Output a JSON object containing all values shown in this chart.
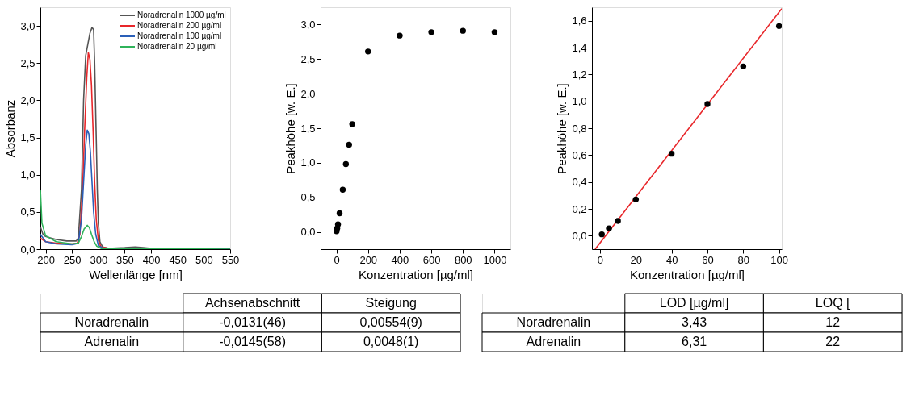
{
  "chart_data": [
    {
      "type": "line",
      "xlabel": "Wellenlänge [nm]",
      "ylabel": "Absorbanz",
      "legend": "top right",
      "line_style": "solid",
      "xlim": [
        190,
        550
      ],
      "xticks": [
        200,
        250,
        300,
        350,
        400,
        450,
        500,
        550
      ],
      "ylim": [
        0,
        3.25
      ],
      "yticks": [
        {
          "value": 0,
          "label": "0,0"
        },
        {
          "value": 0.5,
          "label": "0,5"
        },
        {
          "value": 1,
          "label": "1,0"
        },
        {
          "value": 1.5,
          "label": "1,5"
        },
        {
          "value": 2,
          "label": "2,0"
        },
        {
          "value": 2.5,
          "label": "2,5"
        },
        {
          "value": 3,
          "label": "3,0"
        }
      ],
      "series": [
        {
          "name": "Noradrenalin 1000 µg/ml",
          "color": "#555555",
          "x": [
            190,
            195,
            200,
            210,
            220,
            240,
            258,
            262,
            268,
            272,
            276,
            280,
            284,
            288,
            291,
            293,
            296,
            298,
            300,
            303,
            308,
            320,
            350,
            370,
            385,
            400,
            420,
            550
          ],
          "values": [
            0.3,
            0.2,
            0.17,
            0.15,
            0.13,
            0.11,
            0.11,
            0.15,
            0.8,
            2.0,
            2.6,
            2.75,
            2.9,
            2.98,
            2.95,
            2.5,
            1.5,
            0.8,
            0.35,
            0.1,
            0.03,
            0.01,
            0.02,
            0.03,
            0.02,
            0.01,
            0,
            0
          ]
        },
        {
          "name": "Noradrenalin 200 µg/ml",
          "color": "#e8262a",
          "x": [
            190,
            200,
            220,
            250,
            260,
            265,
            270,
            274,
            278,
            281,
            284,
            287,
            290,
            293,
            296,
            300,
            305,
            320,
            400,
            550
          ],
          "values": [
            0.15,
            0.1,
            0.08,
            0.07,
            0.08,
            0.2,
            0.8,
            1.6,
            2.3,
            2.64,
            2.55,
            2.2,
            1.6,
            0.9,
            0.4,
            0.12,
            0.03,
            0.01,
            0,
            0
          ]
        },
        {
          "name": "Noradrenalin 100 µg/ml",
          "color": "#2a5fb8",
          "x": [
            190,
            200,
            220,
            250,
            262,
            268,
            272,
            276,
            279,
            282,
            285,
            288,
            291,
            295,
            300,
            310,
            550
          ],
          "values": [
            0.2,
            0.1,
            0.07,
            0.06,
            0.08,
            0.4,
            0.9,
            1.4,
            1.6,
            1.55,
            1.3,
            0.9,
            0.5,
            0.2,
            0.05,
            0.01,
            0
          ]
        },
        {
          "name": "Noradrenalin 20 µg/ml",
          "color": "#2fb35a",
          "x": [
            190,
            193,
            200,
            220,
            250,
            262,
            268,
            273,
            279,
            283,
            287,
            292,
            297,
            305,
            550
          ],
          "values": [
            0.8,
            0.35,
            0.18,
            0.1,
            0.07,
            0.08,
            0.17,
            0.27,
            0.32,
            0.29,
            0.2,
            0.1,
            0.04,
            0.01,
            0
          ]
        }
      ]
    },
    {
      "type": "scatter",
      "xlabel": "Konzentration [µg/ml]",
      "ylabel": "Peakhöhe [w. E.]",
      "marker": "circle",
      "xlim": [
        -100,
        1100
      ],
      "xticks": [
        0,
        200,
        400,
        600,
        800,
        1000
      ],
      "ylim": [
        -0.25,
        3.25
      ],
      "yticks": [
        {
          "value": 0,
          "label": "0,0"
        },
        {
          "value": 0.5,
          "label": "0,5"
        },
        {
          "value": 1,
          "label": "1,0"
        },
        {
          "value": 1.5,
          "label": "1,5"
        },
        {
          "value": 2,
          "label": "2,0"
        },
        {
          "value": 2.5,
          "label": "2,5"
        },
        {
          "value": 3,
          "label": "3,0"
        }
      ],
      "series": [
        {
          "color": "#000000",
          "x": [
            1,
            5,
            10,
            20,
            40,
            60,
            80,
            100,
            200,
            400,
            600,
            800,
            1000
          ],
          "values": [
            0.01,
            0.05,
            0.11,
            0.27,
            0.61,
            0.98,
            1.26,
            1.56,
            2.61,
            2.84,
            2.89,
            2.91,
            2.89
          ]
        }
      ]
    },
    {
      "type": "scatter",
      "xlabel": "Konzentration [µg/ml]",
      "ylabel": "Peakhöhe [w. E.]",
      "xlim": [
        -4.5,
        101.5
      ],
      "xticks": [
        0,
        20,
        40,
        60,
        80,
        100
      ],
      "ylim": [
        -0.1,
        1.7
      ],
      "yticks": [
        {
          "value": 0,
          "label": "0,0"
        },
        {
          "value": 0.2,
          "label": "0,2"
        },
        {
          "value": 0.4,
          "label": "0,4"
        },
        {
          "value": 0.6,
          "label": "0,6"
        },
        {
          "value": 0.8,
          "label": "0,8"
        },
        {
          "value": 1,
          "label": "1,0"
        },
        {
          "value": 1.2,
          "label": "1,2"
        },
        {
          "value": 1.4,
          "label": "1,4"
        },
        {
          "value": 1.6,
          "label": "1,6"
        }
      ],
      "series": [
        {
          "type": "line",
          "color": "#e8262a",
          "x": [
            -2.7,
            101.5
          ],
          "values": [
            -0.1,
            1.69
          ]
        },
        {
          "color": "#000000",
          "marker": "circle",
          "x": [
            1,
            5,
            10,
            20,
            40,
            60,
            80,
            100
          ],
          "values": [
            0.01,
            0.055,
            0.11,
            0.27,
            0.61,
            0.98,
            1.26,
            1.56
          ]
        }
      ]
    },
    {
      "type": "other",
      "categories": [
        "Achsenabschnitt",
        "Steigung"
      ],
      "y_categories": [
        "Noradrenalin",
        "Adrenalin"
      ],
      "cell_labels": [
        [
          "-0,0131(46)",
          "0,00554(9)"
        ],
        [
          "-0,0145(58)",
          "0,0048(1)"
        ]
      ]
    },
    {
      "type": "other",
      "categories": [
        "LOD [µg/ml]",
        "LOQ ["
      ],
      "y_categories": [
        "Noradrenalin",
        "Adrenalin"
      ],
      "cell_labels": [
        [
          "3,43",
          "12"
        ],
        [
          "6,31",
          "22"
        ]
      ]
    }
  ]
}
